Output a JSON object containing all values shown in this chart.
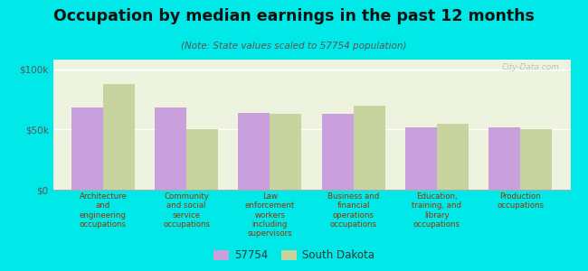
{
  "title": "Occupation by median earnings in the past 12 months",
  "subtitle": "(Note: State values scaled to 57754 population)",
  "categories": [
    "Architecture\nand\nengineering\noccupations",
    "Community\nand social\nservice\noccupations",
    "Law\nenforcement\nworkers\nincluding\nsupervisors",
    "Business and\nfinancial\noperations\noccupations",
    "Education,\ntraining, and\nlibrary\noccupations",
    "Production\noccupations"
  ],
  "values_57754": [
    68000,
    68000,
    64000,
    63000,
    52000,
    52000
  ],
  "values_sd": [
    88000,
    50000,
    63000,
    70000,
    55000,
    50000
  ],
  "color_57754": "#c9a0dc",
  "color_sd": "#c8d4a0",
  "legend_labels": [
    "57754",
    "South Dakota"
  ],
  "yticks": [
    0,
    50000,
    100000
  ],
  "yticklabels": [
    "$0",
    "$50k",
    "$100k"
  ],
  "ylim": [
    0,
    108000
  ],
  "background_color": "#00e8e8",
  "plot_bg_color": "#eef3e0",
  "watermark": "City-Data.com",
  "title_color": "#111111",
  "subtitle_color": "#555555",
  "label_color": "#993300",
  "tick_color": "#555555"
}
